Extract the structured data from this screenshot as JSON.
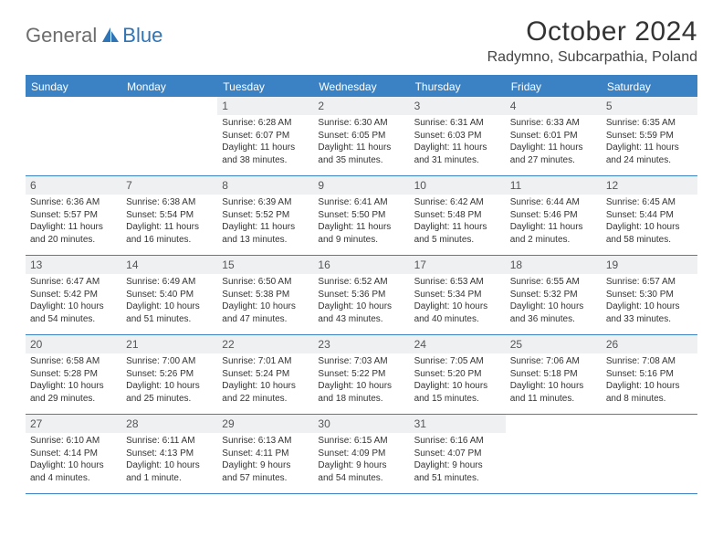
{
  "logo": {
    "word1": "General",
    "word2": "Blue",
    "accent_color": "#2f74b5"
  },
  "title": "October 2024",
  "location": "Radymno, Subcarpathia, Poland",
  "colors": {
    "header_bg": "#3b82c4",
    "header_text": "#ffffff",
    "daynum_bg": "#eef0f2",
    "rule": "#3b82c4",
    "text": "#333333"
  },
  "weekdays": [
    "Sunday",
    "Monday",
    "Tuesday",
    "Wednesday",
    "Thursday",
    "Friday",
    "Saturday"
  ],
  "weeks": [
    [
      null,
      null,
      {
        "n": "1",
        "sr": "Sunrise: 6:28 AM",
        "ss": "Sunset: 6:07 PM",
        "dl1": "Daylight: 11 hours",
        "dl2": "and 38 minutes."
      },
      {
        "n": "2",
        "sr": "Sunrise: 6:30 AM",
        "ss": "Sunset: 6:05 PM",
        "dl1": "Daylight: 11 hours",
        "dl2": "and 35 minutes."
      },
      {
        "n": "3",
        "sr": "Sunrise: 6:31 AM",
        "ss": "Sunset: 6:03 PM",
        "dl1": "Daylight: 11 hours",
        "dl2": "and 31 minutes."
      },
      {
        "n": "4",
        "sr": "Sunrise: 6:33 AM",
        "ss": "Sunset: 6:01 PM",
        "dl1": "Daylight: 11 hours",
        "dl2": "and 27 minutes."
      },
      {
        "n": "5",
        "sr": "Sunrise: 6:35 AM",
        "ss": "Sunset: 5:59 PM",
        "dl1": "Daylight: 11 hours",
        "dl2": "and 24 minutes."
      }
    ],
    [
      {
        "n": "6",
        "sr": "Sunrise: 6:36 AM",
        "ss": "Sunset: 5:57 PM",
        "dl1": "Daylight: 11 hours",
        "dl2": "and 20 minutes."
      },
      {
        "n": "7",
        "sr": "Sunrise: 6:38 AM",
        "ss": "Sunset: 5:54 PM",
        "dl1": "Daylight: 11 hours",
        "dl2": "and 16 minutes."
      },
      {
        "n": "8",
        "sr": "Sunrise: 6:39 AM",
        "ss": "Sunset: 5:52 PM",
        "dl1": "Daylight: 11 hours",
        "dl2": "and 13 minutes."
      },
      {
        "n": "9",
        "sr": "Sunrise: 6:41 AM",
        "ss": "Sunset: 5:50 PM",
        "dl1": "Daylight: 11 hours",
        "dl2": "and 9 minutes."
      },
      {
        "n": "10",
        "sr": "Sunrise: 6:42 AM",
        "ss": "Sunset: 5:48 PM",
        "dl1": "Daylight: 11 hours",
        "dl2": "and 5 minutes."
      },
      {
        "n": "11",
        "sr": "Sunrise: 6:44 AM",
        "ss": "Sunset: 5:46 PM",
        "dl1": "Daylight: 11 hours",
        "dl2": "and 2 minutes."
      },
      {
        "n": "12",
        "sr": "Sunrise: 6:45 AM",
        "ss": "Sunset: 5:44 PM",
        "dl1": "Daylight: 10 hours",
        "dl2": "and 58 minutes."
      }
    ],
    [
      {
        "n": "13",
        "sr": "Sunrise: 6:47 AM",
        "ss": "Sunset: 5:42 PM",
        "dl1": "Daylight: 10 hours",
        "dl2": "and 54 minutes."
      },
      {
        "n": "14",
        "sr": "Sunrise: 6:49 AM",
        "ss": "Sunset: 5:40 PM",
        "dl1": "Daylight: 10 hours",
        "dl2": "and 51 minutes."
      },
      {
        "n": "15",
        "sr": "Sunrise: 6:50 AM",
        "ss": "Sunset: 5:38 PM",
        "dl1": "Daylight: 10 hours",
        "dl2": "and 47 minutes."
      },
      {
        "n": "16",
        "sr": "Sunrise: 6:52 AM",
        "ss": "Sunset: 5:36 PM",
        "dl1": "Daylight: 10 hours",
        "dl2": "and 43 minutes."
      },
      {
        "n": "17",
        "sr": "Sunrise: 6:53 AM",
        "ss": "Sunset: 5:34 PM",
        "dl1": "Daylight: 10 hours",
        "dl2": "and 40 minutes."
      },
      {
        "n": "18",
        "sr": "Sunrise: 6:55 AM",
        "ss": "Sunset: 5:32 PM",
        "dl1": "Daylight: 10 hours",
        "dl2": "and 36 minutes."
      },
      {
        "n": "19",
        "sr": "Sunrise: 6:57 AM",
        "ss": "Sunset: 5:30 PM",
        "dl1": "Daylight: 10 hours",
        "dl2": "and 33 minutes."
      }
    ],
    [
      {
        "n": "20",
        "sr": "Sunrise: 6:58 AM",
        "ss": "Sunset: 5:28 PM",
        "dl1": "Daylight: 10 hours",
        "dl2": "and 29 minutes."
      },
      {
        "n": "21",
        "sr": "Sunrise: 7:00 AM",
        "ss": "Sunset: 5:26 PM",
        "dl1": "Daylight: 10 hours",
        "dl2": "and 25 minutes."
      },
      {
        "n": "22",
        "sr": "Sunrise: 7:01 AM",
        "ss": "Sunset: 5:24 PM",
        "dl1": "Daylight: 10 hours",
        "dl2": "and 22 minutes."
      },
      {
        "n": "23",
        "sr": "Sunrise: 7:03 AM",
        "ss": "Sunset: 5:22 PM",
        "dl1": "Daylight: 10 hours",
        "dl2": "and 18 minutes."
      },
      {
        "n": "24",
        "sr": "Sunrise: 7:05 AM",
        "ss": "Sunset: 5:20 PM",
        "dl1": "Daylight: 10 hours",
        "dl2": "and 15 minutes."
      },
      {
        "n": "25",
        "sr": "Sunrise: 7:06 AM",
        "ss": "Sunset: 5:18 PM",
        "dl1": "Daylight: 10 hours",
        "dl2": "and 11 minutes."
      },
      {
        "n": "26",
        "sr": "Sunrise: 7:08 AM",
        "ss": "Sunset: 5:16 PM",
        "dl1": "Daylight: 10 hours",
        "dl2": "and 8 minutes."
      }
    ],
    [
      {
        "n": "27",
        "sr": "Sunrise: 6:10 AM",
        "ss": "Sunset: 4:14 PM",
        "dl1": "Daylight: 10 hours",
        "dl2": "and 4 minutes."
      },
      {
        "n": "28",
        "sr": "Sunrise: 6:11 AM",
        "ss": "Sunset: 4:13 PM",
        "dl1": "Daylight: 10 hours",
        "dl2": "and 1 minute."
      },
      {
        "n": "29",
        "sr": "Sunrise: 6:13 AM",
        "ss": "Sunset: 4:11 PM",
        "dl1": "Daylight: 9 hours",
        "dl2": "and 57 minutes."
      },
      {
        "n": "30",
        "sr": "Sunrise: 6:15 AM",
        "ss": "Sunset: 4:09 PM",
        "dl1": "Daylight: 9 hours",
        "dl2": "and 54 minutes."
      },
      {
        "n": "31",
        "sr": "Sunrise: 6:16 AM",
        "ss": "Sunset: 4:07 PM",
        "dl1": "Daylight: 9 hours",
        "dl2": "and 51 minutes."
      },
      null,
      null
    ]
  ]
}
